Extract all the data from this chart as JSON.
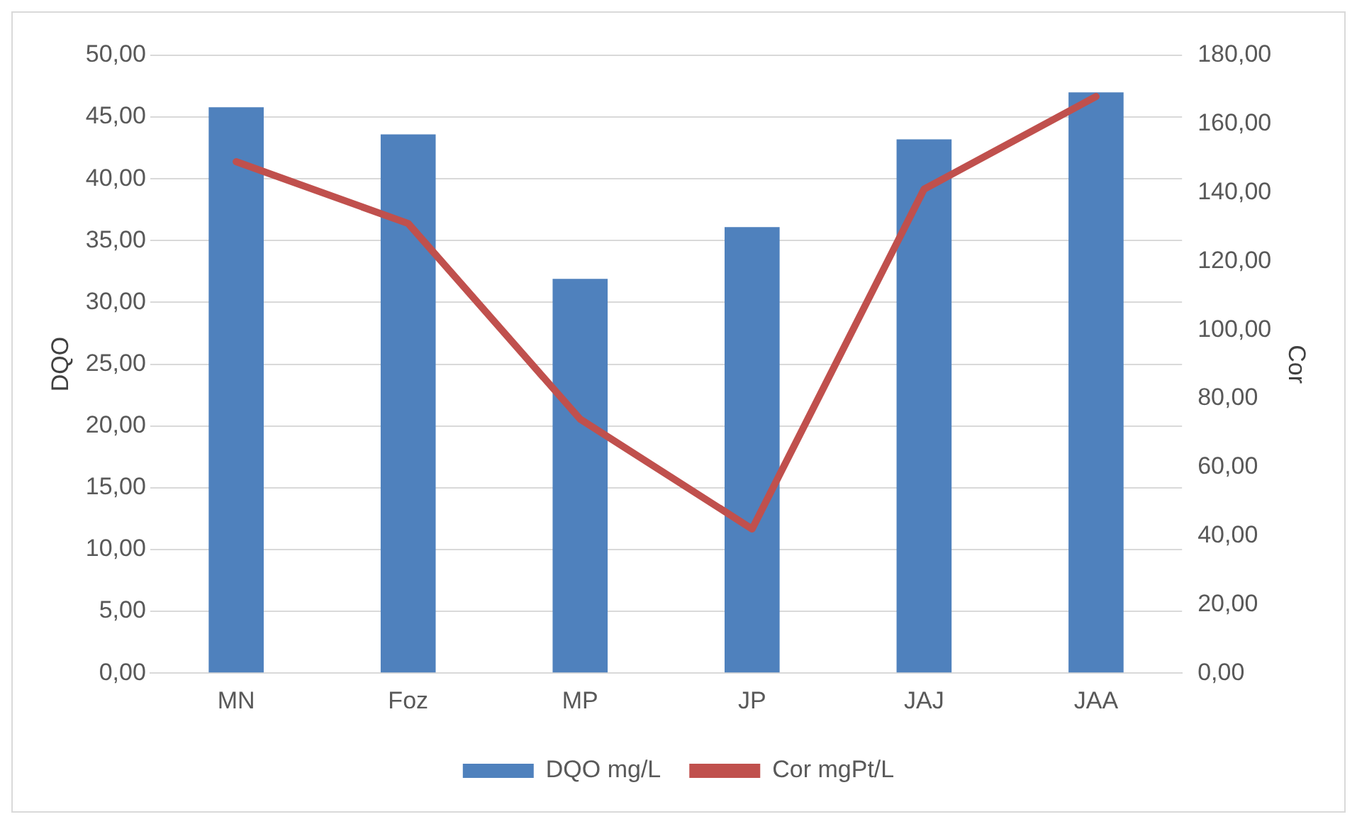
{
  "chart_data": {
    "type": "bar",
    "categories": [
      "MN",
      "Foz",
      "MP",
      "JP",
      "JAJ",
      "JAA"
    ],
    "series": [
      {
        "name": "DQO mg/L",
        "color": "#4f81bd",
        "values": [
          45.8,
          43.6,
          31.9,
          36.1,
          43.2,
          47.0
        ]
      },
      {
        "name": "Cor mgPt/L",
        "type": "line",
        "axis": "y2",
        "color": "#c0504d",
        "values": [
          149,
          131,
          74,
          42,
          141,
          168
        ]
      }
    ],
    "ylabel": "DQO",
    "y2label": "Cor",
    "ylim": [
      0,
      50
    ],
    "yticks": [
      {
        "value": 0,
        "label": "0,00"
      },
      {
        "value": 5,
        "label": "5,00"
      },
      {
        "value": 10,
        "label": "10,00"
      },
      {
        "value": 15,
        "label": "15,00"
      },
      {
        "value": 20,
        "label": "20,00"
      },
      {
        "value": 25,
        "label": "25,00"
      },
      {
        "value": 30,
        "label": "30,00"
      },
      {
        "value": 35,
        "label": "35,00"
      },
      {
        "value": 40,
        "label": "40,00"
      },
      {
        "value": 45,
        "label": "45,00"
      },
      {
        "value": 50,
        "label": "50,00"
      }
    ],
    "y2lim": [
      0,
      180
    ],
    "y2ticks": [
      {
        "value": 0,
        "label": "0,00"
      },
      {
        "value": 20,
        "label": "20,00"
      },
      {
        "value": 40,
        "label": "40,00"
      },
      {
        "value": 60,
        "label": "60,00"
      },
      {
        "value": 80,
        "label": "80,00"
      },
      {
        "value": 100,
        "label": "100,00"
      },
      {
        "value": 120,
        "label": "120,00"
      },
      {
        "value": 140,
        "label": "140,00"
      },
      {
        "value": 160,
        "label": "160,00"
      },
      {
        "value": 180,
        "label": "180,00"
      }
    ],
    "grid": "y",
    "legend": "bottom",
    "marker": "none",
    "line_style": "solid"
  }
}
